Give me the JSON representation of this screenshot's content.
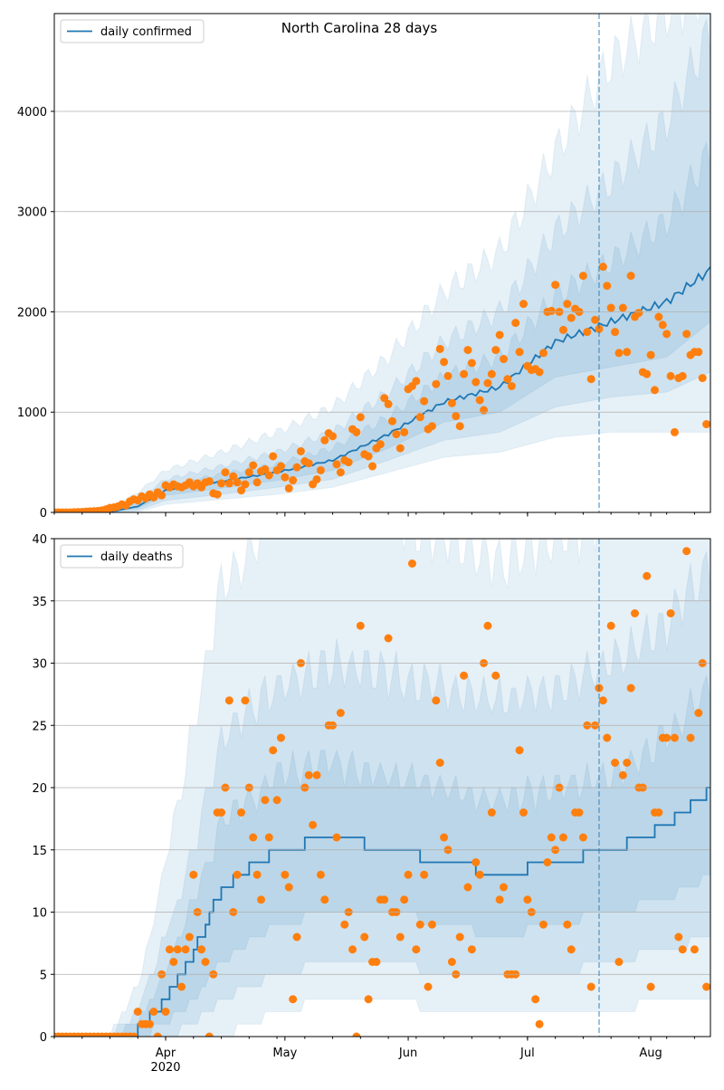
{
  "chart_data": [
    {
      "type": "line",
      "title": "North Carolina 28 days",
      "legend": {
        "label": "daily confirmed",
        "placement": "top-left"
      },
      "start_date": "2020-03-04",
      "xlim_days": [
        0,
        165
      ],
      "ylim": [
        0,
        4975
      ],
      "yticks": [
        0,
        1000,
        2000,
        3000,
        4000
      ],
      "grid": "horizontal",
      "forecast_start_day": 137,
      "band_days": [
        0,
        14,
        21,
        28,
        42,
        56,
        70,
        84,
        98,
        112,
        126,
        140,
        154,
        165
      ],
      "median": [
        0,
        5,
        60,
        220,
        310,
        400,
        520,
        780,
        1100,
        1250,
        1700,
        1900,
        2100,
        2420
      ],
      "bands": [
        {
          "name": "outer",
          "lo": [
            0,
            0,
            5,
            80,
            130,
            180,
            250,
            400,
            550,
            600,
            750,
            800,
            800,
            800
          ],
          "hi": [
            0,
            40,
            200,
            420,
            600,
            800,
            1050,
            1550,
            2200,
            2600,
            3600,
            4500,
            5000,
            5200
          ]
        },
        {
          "name": "middle",
          "lo": [
            0,
            1,
            20,
            120,
            180,
            250,
            330,
            520,
            720,
            800,
            1050,
            1150,
            1200,
            1400
          ],
          "hi": [
            0,
            15,
            130,
            330,
            460,
            600,
            800,
            1200,
            1700,
            2000,
            2800,
            3300,
            3900,
            4800
          ]
        },
        {
          "name": "inner",
          "lo": [
            0,
            3,
            40,
            170,
            240,
            320,
            420,
            640,
            900,
            1000,
            1350,
            1450,
            1550,
            1900
          ],
          "hi": [
            0,
            8,
            90,
            270,
            380,
            480,
            640,
            950,
            1350,
            1550,
            2150,
            2500,
            2900,
            3600
          ]
        }
      ],
      "observed": [
        0,
        0,
        0,
        0,
        0,
        2,
        3,
        5,
        8,
        10,
        12,
        15,
        20,
        30,
        45,
        50,
        60,
        80,
        70,
        110,
        130,
        120,
        160,
        140,
        180,
        150,
        200,
        170,
        270,
        250,
        280,
        260,
        250,
        270,
        300,
        260,
        290,
        250,
        300,
        310,
        190,
        180,
        290,
        400,
        290,
        360,
        300,
        220,
        280,
        400,
        470,
        300,
        410,
        430,
        370,
        560,
        420,
        460,
        350,
        240,
        320,
        450,
        610,
        510,
        490,
        280,
        330,
        420,
        720,
        790,
        760,
        480,
        400,
        520,
        500,
        830,
        800,
        950,
        580,
        560,
        460,
        640,
        680,
        1140,
        1080,
        910,
        780,
        640,
        800,
        1230,
        1260,
        1310,
        950,
        1110,
        830,
        860,
        1280,
        1630,
        1500,
        1360,
        1090,
        960,
        860,
        1380,
        1620,
        1490,
        1300,
        1120,
        1020,
        1290,
        1380,
        1620,
        1770,
        1530,
        1330,
        1260,
        1890,
        1600,
        2080,
        1460,
        1420,
        1430,
        1400,
        1590,
        2000,
        2010,
        2270,
        2000,
        1820,
        2080,
        1940,
        2030,
        2000,
        2360,
        1800,
        1330,
        1920,
        1830,
        2450,
        2260,
        2040,
        1800,
        1590,
        2040,
        1600,
        2360,
        1950,
        1990,
        1400,
        1380,
        1570,
        1220,
        1950,
        1870,
        1780,
        1360,
        800,
        1340,
        1360,
        1780,
        1570,
        1600,
        1600,
        1340,
        880
      ]
    },
    {
      "type": "line",
      "title": "",
      "legend": {
        "label": "daily deaths",
        "placement": "top-left"
      },
      "start_date": "2020-03-04",
      "xlim_days": [
        0,
        165
      ],
      "ylim": [
        0,
        40
      ],
      "yticks": [
        0,
        5,
        10,
        15,
        20,
        25,
        30,
        35,
        40
      ],
      "grid": "horizontal",
      "forecast_start_day": 137,
      "step": true,
      "band_days": [
        0,
        14,
        21,
        28,
        35,
        42,
        56,
        70,
        84,
        98,
        112,
        126,
        140,
        154,
        165
      ],
      "median": [
        0,
        0,
        0.5,
        3,
        7,
        12,
        15,
        16,
        15,
        14,
        13,
        14,
        15,
        17,
        20
      ],
      "bands": [
        {
          "name": "outer",
          "lo": [
            0,
            0,
            0,
            0,
            0,
            0,
            2,
            3,
            3,
            2,
            2,
            2,
            2,
            3,
            3
          ],
          "hi": [
            0,
            0,
            4,
            14,
            25,
            36,
            42,
            44,
            42,
            40,
            38,
            40,
            42,
            45,
            48
          ]
        },
        {
          "name": "middle",
          "lo": [
            0,
            0,
            0,
            0,
            1,
            3,
            5,
            6,
            6,
            5,
            5,
            5,
            6,
            7,
            8
          ],
          "hi": [
            0,
            0,
            2,
            8,
            15,
            24,
            28,
            30,
            29,
            28,
            27,
            28,
            30,
            33,
            38
          ]
        },
        {
          "name": "inner",
          "lo": [
            0,
            0,
            0,
            1,
            3,
            6,
            9,
            10,
            10,
            9,
            8,
            9,
            10,
            11,
            13
          ],
          "hi": [
            0,
            0,
            1,
            5,
            11,
            17,
            21,
            22,
            21,
            20,
            19,
            20,
            21,
            24,
            28
          ]
        }
      ],
      "observed": [
        0,
        0,
        0,
        0,
        0,
        0,
        0,
        0,
        0,
        0,
        0,
        0,
        0,
        0,
        0,
        0,
        0,
        0,
        0,
        0,
        0,
        2,
        1,
        1,
        1,
        2,
        0,
        5,
        2,
        7,
        6,
        7,
        4,
        7,
        8,
        13,
        10,
        7,
        6,
        0,
        5,
        18,
        18,
        20,
        27,
        10,
        13,
        18,
        27,
        20,
        16,
        13,
        11,
        19,
        16,
        23,
        19,
        24,
        13,
        12,
        3,
        8,
        30,
        20,
        21,
        17,
        21,
        13,
        11,
        25,
        25,
        16,
        26,
        9,
        10,
        7,
        0,
        33,
        8,
        3,
        6,
        6,
        11,
        11,
        32,
        10,
        10,
        8,
        11,
        13,
        38,
        7,
        9,
        13,
        4,
        9,
        27,
        22,
        16,
        15,
        6,
        5,
        8,
        29,
        12,
        7,
        14,
        13,
        30,
        33,
        18,
        29,
        11,
        12,
        5,
        5,
        5,
        23,
        18,
        11,
        10,
        3,
        1,
        9,
        14,
        16,
        15,
        20,
        16,
        9,
        7,
        18,
        18,
        16,
        25,
        4,
        25,
        28,
        27,
        24,
        33,
        22,
        6,
        21,
        22,
        28,
        34,
        20,
        20,
        37,
        4,
        18,
        18,
        24,
        24,
        34,
        24,
        8,
        7,
        39,
        24,
        7,
        26,
        30,
        4
      ]
    }
  ],
  "xaxis": {
    "ticks": [
      {
        "day": 28,
        "label": "Apr",
        "sub": "2020"
      },
      {
        "day": 58,
        "label": "May"
      },
      {
        "day": 89,
        "label": "Jun"
      },
      {
        "day": 119,
        "label": "Jul"
      },
      {
        "day": 150,
        "label": "Aug"
      }
    ]
  },
  "colors": {
    "line": "#1f77b4",
    "points": "#ff7f0e",
    "band": "#1f77b4",
    "grid": "#b0b0b0"
  }
}
